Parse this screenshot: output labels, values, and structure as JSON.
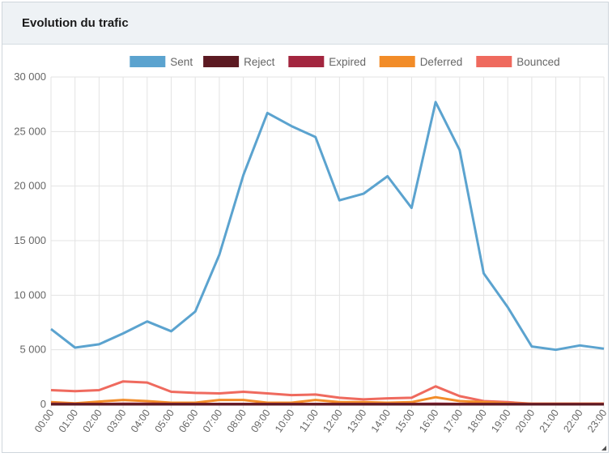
{
  "panel": {
    "title": "Evolution du trafic"
  },
  "colors": {
    "sent": "#5ba3cf",
    "reject": "#5c1a22",
    "expired": "#a3263f",
    "deferred": "#f28c28",
    "bounced": "#ef6a5e",
    "grid": "#e3e3e3",
    "axis_text": "#666666"
  },
  "chart_data": {
    "type": "line",
    "title": "Evolution du trafic",
    "xlabel": "",
    "ylabel": "",
    "ylim": [
      0,
      30000
    ],
    "yticks": [
      0,
      5000,
      10000,
      15000,
      20000,
      25000,
      30000
    ],
    "ytick_labels": [
      "0",
      "5 000",
      "10 000",
      "15 000",
      "20 000",
      "25 000",
      "30 000"
    ],
    "grid": true,
    "legend_position": "top-center",
    "categories": [
      "00:00",
      "01:00",
      "02:00",
      "03:00",
      "04:00",
      "05:00",
      "06:00",
      "07:00",
      "08:00",
      "09:00",
      "10:00",
      "11:00",
      "12:00",
      "13:00",
      "14:00",
      "15:00",
      "16:00",
      "17:00",
      "18:00",
      "19:00",
      "20:00",
      "21:00",
      "22:00",
      "23:00"
    ],
    "series": [
      {
        "name": "Sent",
        "color_key": "sent",
        "values": [
          6900,
          5200,
          5500,
          6500,
          7600,
          6700,
          8500,
          13700,
          21000,
          26700,
          25500,
          24500,
          18700,
          19300,
          20900,
          18000,
          27700,
          23300,
          12000,
          8900,
          5300,
          5000,
          5400,
          5100
        ]
      },
      {
        "name": "Reject",
        "color_key": "reject",
        "values": [
          0,
          0,
          0,
          0,
          0,
          0,
          0,
          0,
          0,
          0,
          0,
          0,
          0,
          0,
          0,
          0,
          0,
          0,
          0,
          0,
          0,
          0,
          0,
          0
        ]
      },
      {
        "name": "Expired",
        "color_key": "expired",
        "values": [
          50,
          40,
          40,
          50,
          50,
          40,
          40,
          40,
          40,
          40,
          40,
          40,
          40,
          40,
          40,
          40,
          50,
          40,
          40,
          40,
          30,
          30,
          30,
          30
        ]
      },
      {
        "name": "Deferred",
        "color_key": "deferred",
        "values": [
          200,
          100,
          250,
          400,
          300,
          150,
          150,
          400,
          400,
          150,
          150,
          400,
          200,
          200,
          150,
          200,
          650,
          300,
          200,
          100,
          50,
          50,
          50,
          50
        ]
      },
      {
        "name": "Bounced",
        "color_key": "bounced",
        "values": [
          1300,
          1200,
          1300,
          2100,
          2000,
          1150,
          1050,
          1000,
          1150,
          1000,
          850,
          900,
          600,
          450,
          550,
          600,
          1650,
          750,
          300,
          200,
          50,
          50,
          50,
          50
        ]
      }
    ]
  }
}
